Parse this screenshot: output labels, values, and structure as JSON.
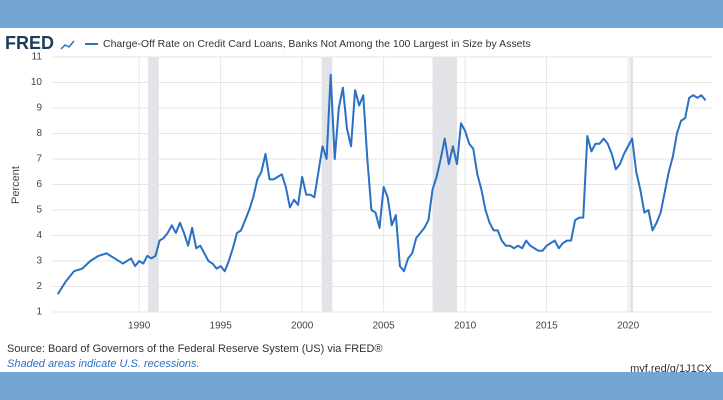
{
  "chart_data": {
    "type": "line",
    "brand": "FRED",
    "y_label": "Percent",
    "source": "Source: Board of Governors of the Federal Reserve System (US) via FRED®",
    "note": "Shaded areas indicate U.S. recessions.",
    "url": "myf.red/g/1J1CX",
    "xlim": [
      1984.65,
      2025.15
    ],
    "ylim": [
      1,
      11
    ],
    "xticks": [
      1990,
      1995,
      2000,
      2005,
      2010,
      2015,
      2020
    ],
    "yticks": [
      1,
      2,
      3,
      4,
      5,
      6,
      7,
      8,
      9,
      10,
      11
    ],
    "grid": true,
    "recession_color": "#e1e3e6",
    "recessions": [
      [
        1990.55,
        1991.2
      ],
      [
        2001.2,
        2001.85
      ],
      [
        2008.0,
        2009.5
      ],
      [
        2020.1,
        2020.3
      ]
    ],
    "x": [
      1985,
      1985.5,
      1986,
      1986.5,
      1987,
      1987.5,
      1988,
      1988.5,
      1989,
      1989.25,
      1989.5,
      1989.75,
      1990,
      1990.25,
      1990.5,
      1990.75,
      1991,
      1991.25,
      1991.5,
      1991.75,
      1992,
      1992.25,
      1992.5,
      1992.75,
      1993,
      1993.25,
      1993.5,
      1993.75,
      1994,
      1994.25,
      1994.5,
      1994.75,
      1995,
      1995.25,
      1995.5,
      1995.75,
      1996,
      1996.25,
      1996.5,
      1996.75,
      1997,
      1997.25,
      1997.5,
      1997.75,
      1998,
      1998.25,
      1998.5,
      1998.75,
      1999,
      1999.25,
      1999.5,
      1999.75,
      2000,
      2000.25,
      2000.5,
      2000.75,
      2001,
      2001.25,
      2001.5,
      2001.75,
      2002,
      2002.25,
      2002.5,
      2002.75,
      2003,
      2003.25,
      2003.5,
      2003.75,
      2004,
      2004.25,
      2004.5,
      2004.75,
      2005,
      2005.25,
      2005.5,
      2005.75,
      2006,
      2006.25,
      2006.5,
      2006.75,
      2007,
      2007.25,
      2007.5,
      2007.75,
      2008,
      2008.25,
      2008.5,
      2008.75,
      2009,
      2009.25,
      2009.5,
      2009.75,
      2010,
      2010.25,
      2010.5,
      2010.75,
      2011,
      2011.25,
      2011.5,
      2011.75,
      2012,
      2012.25,
      2012.5,
      2012.75,
      2013,
      2013.25,
      2013.5,
      2013.75,
      2014,
      2014.25,
      2014.5,
      2014.75,
      2015,
      2015.25,
      2015.5,
      2015.75,
      2016,
      2016.25,
      2016.5,
      2016.75,
      2017,
      2017.25,
      2017.5,
      2017.75,
      2018,
      2018.25,
      2018.5,
      2018.75,
      2019,
      2019.25,
      2019.5,
      2019.75,
      2020,
      2020.25,
      2020.5,
      2020.75,
      2021,
      2021.25,
      2021.5,
      2021.75,
      2022,
      2022.25,
      2022.5,
      2022.75,
      2023,
      2023.25,
      2023.5,
      2023.75,
      2024,
      2024.25,
      2024.5,
      2024.75
    ],
    "series": [
      {
        "name": "Charge-Off Rate on Credit Card Loans, Banks Not Among the 100 Largest in Size by Assets",
        "color": "#2a70c4",
        "values": [
          1.7,
          2.2,
          2.6,
          2.7,
          3.0,
          3.2,
          3.3,
          3.1,
          2.9,
          3.0,
          3.1,
          2.8,
          3.0,
          2.9,
          3.2,
          3.1,
          3.2,
          3.8,
          3.9,
          4.1,
          4.4,
          4.1,
          4.5,
          4.1,
          3.6,
          4.3,
          3.5,
          3.6,
          3.3,
          3.0,
          2.9,
          2.7,
          2.8,
          2.6,
          3.0,
          3.5,
          4.1,
          4.2,
          4.6,
          5.0,
          5.5,
          6.2,
          6.5,
          7.2,
          6.2,
          6.2,
          6.3,
          6.4,
          5.9,
          5.1,
          5.4,
          5.2,
          6.3,
          5.6,
          5.6,
          5.5,
          6.5,
          7.5,
          7.0,
          10.3,
          7.0,
          9.0,
          9.8,
          8.2,
          7.5,
          9.7,
          9.1,
          9.5,
          7.0,
          5.0,
          4.9,
          4.3,
          5.9,
          5.5,
          4.4,
          4.8,
          2.8,
          2.6,
          3.1,
          3.3,
          3.9,
          4.1,
          4.3,
          4.6,
          5.8,
          6.3,
          7.0,
          7.8,
          6.8,
          7.5,
          6.8,
          8.4,
          8.1,
          7.6,
          7.4,
          6.4,
          5.8,
          5.0,
          4.5,
          4.2,
          4.2,
          3.8,
          3.6,
          3.6,
          3.5,
          3.6,
          3.5,
          3.8,
          3.6,
          3.5,
          3.4,
          3.4,
          3.6,
          3.7,
          3.8,
          3.5,
          3.7,
          3.8,
          3.8,
          4.6,
          4.7,
          4.7,
          7.9,
          7.3,
          7.6,
          7.6,
          7.8,
          7.6,
          7.2,
          6.6,
          6.8,
          7.2,
          7.5,
          7.8,
          6.5,
          5.8,
          4.9,
          5.0,
          4.2,
          4.5,
          4.9,
          5.7,
          6.5,
          7.1,
          8.0,
          8.5,
          8.6,
          9.4,
          9.5,
          9.4,
          9.5,
          9.3
        ]
      }
    ]
  }
}
